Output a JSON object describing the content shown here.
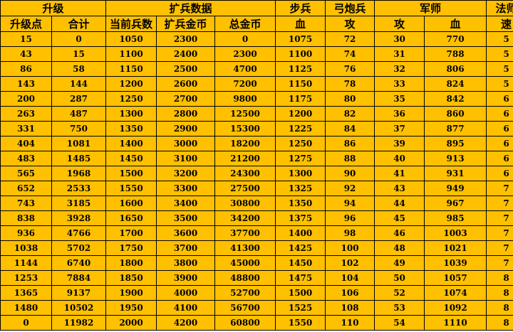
{
  "table": {
    "group_headers": [
      {
        "label": "升级",
        "span": 2
      },
      {
        "label": "扩兵数据",
        "span": 3
      },
      {
        "label": "步兵",
        "span": 1
      },
      {
        "label": "弓炮兵",
        "span": 1
      },
      {
        "label": "军师",
        "span": 2
      },
      {
        "label": "法师",
        "span": 1
      }
    ],
    "column_headers": [
      "升级点",
      "合计",
      "当前兵数",
      "扩兵金币",
      "总金币",
      "血",
      "攻",
      "攻",
      "血",
      "速"
    ],
    "rows": [
      [
        "15",
        "0",
        "1050",
        "2300",
        "0",
        "1075",
        "72",
        "30",
        "770",
        "5"
      ],
      [
        "43",
        "15",
        "1100",
        "2400",
        "2300",
        "1100",
        "74",
        "31",
        "788",
        "5"
      ],
      [
        "86",
        "58",
        "1150",
        "2500",
        "4700",
        "1125",
        "76",
        "32",
        "806",
        "5"
      ],
      [
        "143",
        "144",
        "1200",
        "2600",
        "7200",
        "1150",
        "78",
        "33",
        "824",
        "5"
      ],
      [
        "200",
        "287",
        "1250",
        "2700",
        "9800",
        "1175",
        "80",
        "35",
        "842",
        "6"
      ],
      [
        "263",
        "487",
        "1300",
        "2800",
        "12500",
        "1200",
        "82",
        "36",
        "860",
        "6"
      ],
      [
        "331",
        "750",
        "1350",
        "2900",
        "15300",
        "1225",
        "84",
        "37",
        "877",
        "6"
      ],
      [
        "404",
        "1081",
        "1400",
        "3000",
        "18200",
        "1250",
        "86",
        "39",
        "895",
        "6"
      ],
      [
        "483",
        "1485",
        "1450",
        "3100",
        "21200",
        "1275",
        "88",
        "40",
        "913",
        "6"
      ],
      [
        "565",
        "1968",
        "1500",
        "3200",
        "24300",
        "1300",
        "90",
        "41",
        "931",
        "6"
      ],
      [
        "652",
        "2533",
        "1550",
        "3300",
        "27500",
        "1325",
        "92",
        "43",
        "949",
        "7"
      ],
      [
        "743",
        "3185",
        "1600",
        "3400",
        "30800",
        "1350",
        "94",
        "44",
        "967",
        "7"
      ],
      [
        "838",
        "3928",
        "1650",
        "3500",
        "34200",
        "1375",
        "96",
        "45",
        "985",
        "7"
      ],
      [
        "936",
        "4766",
        "1700",
        "3600",
        "37700",
        "1400",
        "98",
        "46",
        "1003",
        "7"
      ],
      [
        "1038",
        "5702",
        "1750",
        "3700",
        "41300",
        "1425",
        "100",
        "48",
        "1021",
        "7"
      ],
      [
        "1144",
        "6740",
        "1800",
        "3800",
        "45000",
        "1450",
        "102",
        "49",
        "1039",
        "7"
      ],
      [
        "1253",
        "7884",
        "1850",
        "3900",
        "48800",
        "1475",
        "104",
        "50",
        "1057",
        "8"
      ],
      [
        "1365",
        "9137",
        "1900",
        "4000",
        "52700",
        "1500",
        "106",
        "52",
        "1074",
        "8"
      ],
      [
        "1480",
        "10502",
        "1950",
        "4100",
        "56700",
        "1525",
        "108",
        "53",
        "1092",
        "8"
      ],
      [
        "0",
        "11982",
        "2000",
        "4200",
        "60800",
        "1550",
        "110",
        "54",
        "1110",
        "8"
      ]
    ]
  },
  "colors": {
    "cell_background": "#FFC000",
    "grid_line": "#000000",
    "text": "#000000"
  }
}
